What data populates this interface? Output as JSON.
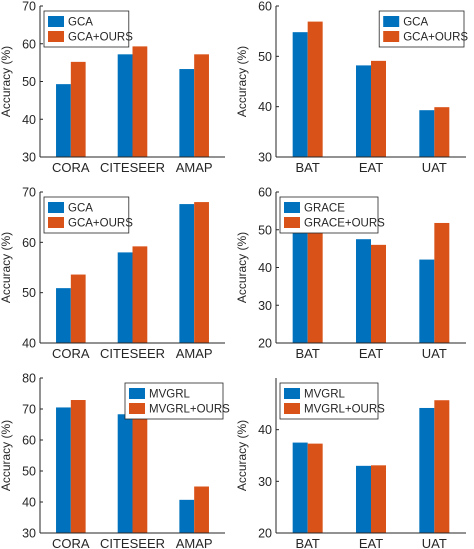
{
  "colors": {
    "series_a": "#0072BD",
    "series_b": "#D95319",
    "axis": "#262626"
  },
  "chart_data": [
    {
      "type": "bar",
      "ylabel": "Accuracy (%)",
      "categories": [
        "CORA",
        "CITESEER",
        "AMAP"
      ],
      "ylim": [
        30,
        70
      ],
      "yticks": [
        30,
        40,
        50,
        60,
        70
      ],
      "legend_position": "top-left",
      "series": [
        {
          "name": "GCA",
          "values": [
            49.3,
            57.2,
            53.3
          ]
        },
        {
          "name": "GCA+OURS",
          "values": [
            55.2,
            59.3,
            57.2
          ]
        }
      ]
    },
    {
      "type": "bar",
      "ylabel": "Accuracy (%)",
      "categories": [
        "BAT",
        "EAT",
        "UAT"
      ],
      "ylim": [
        30,
        60
      ],
      "yticks": [
        30,
        40,
        50,
        60
      ],
      "legend_position": "top-right",
      "series": [
        {
          "name": "GCA",
          "values": [
            54.8,
            48.2,
            39.3
          ]
        },
        {
          "name": "GCA+OURS",
          "values": [
            56.9,
            49.1,
            39.9
          ]
        }
      ]
    },
    {
      "type": "bar",
      "ylabel": "Accuracy (%)",
      "categories": [
        "CORA",
        "CITESEER",
        "AMAP"
      ],
      "ylim": [
        40,
        70
      ],
      "yticks": [
        40,
        50,
        60,
        70
      ],
      "legend_position": "top-left",
      "series": [
        {
          "name": "GCA",
          "values": [
            50.9,
            58.0,
            67.6
          ]
        },
        {
          "name": "GCA+OURS",
          "values": [
            53.6,
            59.2,
            68.0
          ]
        }
      ]
    },
    {
      "type": "bar",
      "ylabel": "Accuracy (%)",
      "categories": [
        "BAT",
        "EAT",
        "UAT"
      ],
      "ylim": [
        20,
        60
      ],
      "yticks": [
        20,
        30,
        40,
        50,
        60
      ],
      "legend_position": "top-left",
      "series": [
        {
          "name": "GRACE",
          "values": [
            50.4,
            47.5,
            42.1
          ]
        },
        {
          "name": "GRACE+OURS",
          "values": [
            52.6,
            46.0,
            51.8
          ]
        }
      ]
    },
    {
      "type": "bar",
      "ylabel": "Accuracy (%)",
      "categories": [
        "CORA",
        "CITESEER",
        "AMAP"
      ],
      "ylim": [
        30,
        80
      ],
      "yticks": [
        30,
        40,
        50,
        60,
        70,
        80
      ],
      "legend_position": "top-right",
      "series": [
        {
          "name": "MVGRL",
          "values": [
            70.5,
            68.3,
            40.7
          ]
        },
        {
          "name": "MVGRL+OURS",
          "values": [
            72.9,
            68.6,
            45.0
          ]
        }
      ]
    },
    {
      "type": "bar",
      "ylabel": "Accuracy (%)",
      "categories": [
        "BAT",
        "EAT",
        "UAT"
      ],
      "ylim": [
        20,
        50
      ],
      "yticks": [
        20,
        30,
        40
      ],
      "legend_position": "top-left",
      "series": [
        {
          "name": "MVGRL",
          "values": [
            37.5,
            33.0,
            44.2
          ]
        },
        {
          "name": "MVGRL+OURS",
          "values": [
            37.3,
            33.1,
            45.7
          ]
        }
      ]
    }
  ]
}
